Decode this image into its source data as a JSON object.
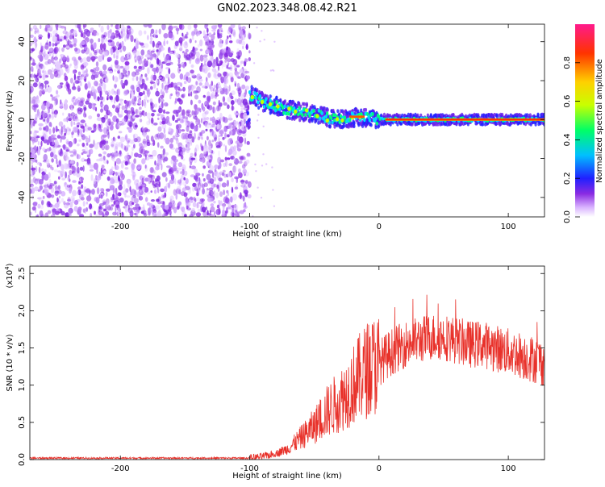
{
  "title": "GN02.2023.348.08.42.R21",
  "chart_data": [
    {
      "type": "heatmap",
      "xlabel": "Height of straight line (km)",
      "ylabel": "Frequency (Hz)",
      "xlim": [
        -270,
        128
      ],
      "ylim": [
        -50,
        49
      ],
      "xticks": [
        "-200",
        "-100",
        "0",
        "100"
      ],
      "yticks": [
        "-40",
        "-20",
        "0",
        "20",
        "40"
      ],
      "colorbar": {
        "label": "Normalized spectral amplitude",
        "range": [
          0,
          1
        ],
        "ticks": [
          "0.0",
          "0.2",
          "0.4",
          "0.6",
          "0.8"
        ],
        "colors": [
          "#ffffff",
          "#d9b3ff",
          "#8a2be2",
          "#2020ff",
          "#00c0ff",
          "#00ff66",
          "#c8ff00",
          "#ffd000",
          "#ff3300",
          "#ff1a8c"
        ]
      },
      "features": {
        "noise_region_x": [
          -270,
          -100
        ],
        "noise_color": "#8a2be2",
        "signal_track": [
          {
            "x": -100,
            "y": 13
          },
          {
            "x": -90,
            "y": 9
          },
          {
            "x": -80,
            "y": 7
          },
          {
            "x": -70,
            "y": 5
          },
          {
            "x": -60,
            "y": 4
          },
          {
            "x": -50,
            "y": 3
          },
          {
            "x": -40,
            "y": 1
          },
          {
            "x": -30,
            "y": 0
          },
          {
            "x": -20,
            "y": 1
          },
          {
            "x": -10,
            "y": 1
          },
          {
            "x": 0,
            "y": 0
          },
          {
            "x": 10,
            "y": 0
          },
          {
            "x": 128,
            "y": 0
          }
        ]
      }
    },
    {
      "type": "line",
      "xlabel": "Height of straight line (km)",
      "ylabel": "SNR (10 * v/v)",
      "multiplier_label": "(x10",
      "multiplier_exp": "4",
      "multiplier_close": ")",
      "xlim": [
        -270,
        128
      ],
      "ylim": [
        0,
        2.6
      ],
      "xticks": [
        "-200",
        "-100",
        "0",
        "100"
      ],
      "yticks": [
        "0.0",
        "0.5",
        "1.0",
        "1.5",
        "2.0",
        "2.5"
      ],
      "color": "#e8312a",
      "envelope": [
        {
          "x": -270,
          "y": 0.02
        },
        {
          "x": -100,
          "y": 0.02
        },
        {
          "x": -90,
          "y": 0.04
        },
        {
          "x": -80,
          "y": 0.08
        },
        {
          "x": -70,
          "y": 0.15
        },
        {
          "x": -60,
          "y": 0.3
        },
        {
          "x": -50,
          "y": 0.45
        },
        {
          "x": -40,
          "y": 0.65
        },
        {
          "x": -30,
          "y": 0.8
        },
        {
          "x": -20,
          "y": 1.0
        },
        {
          "x": -10,
          "y": 1.2
        },
        {
          "x": 0,
          "y": 1.3
        },
        {
          "x": 10,
          "y": 1.45
        },
        {
          "x": 20,
          "y": 1.55
        },
        {
          "x": 30,
          "y": 1.6
        },
        {
          "x": 40,
          "y": 1.65
        },
        {
          "x": 50,
          "y": 1.65
        },
        {
          "x": 60,
          "y": 1.6
        },
        {
          "x": 70,
          "y": 1.55
        },
        {
          "x": 80,
          "y": 1.55
        },
        {
          "x": 90,
          "y": 1.5
        },
        {
          "x": 100,
          "y": 1.45
        },
        {
          "x": 110,
          "y": 1.4
        },
        {
          "x": 128,
          "y": 1.3
        }
      ]
    }
  ]
}
